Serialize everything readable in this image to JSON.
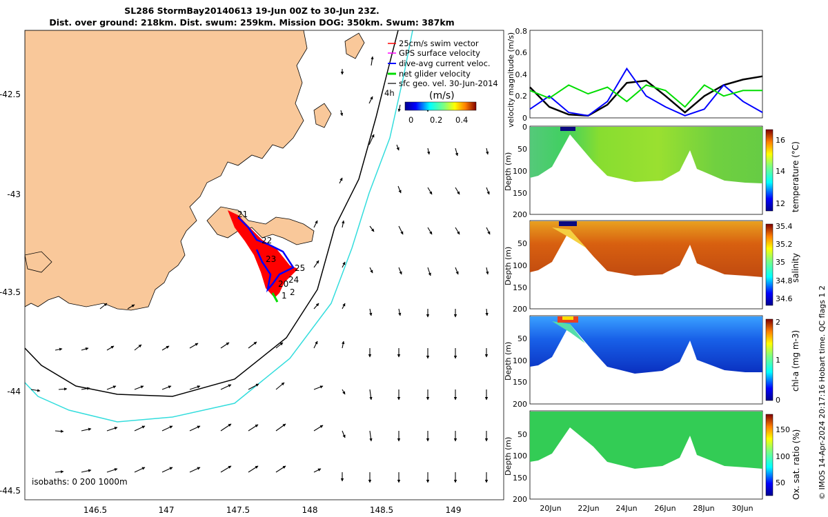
{
  "header": {
    "title_line1": "SL286 StormBay20140613 19-Jun 00Z to 30-Jun 23Z.",
    "title_line2": "Dist. over ground: 218km. Dist. swum: 259km. Mission DOG: 350km. Swum: 387km"
  },
  "map": {
    "lon_ticks": [
      "146.5",
      "147",
      "147.5",
      "148",
      "148.5",
      "149"
    ],
    "lat_ticks": [
      "-42.5",
      "-43",
      "-43.5",
      "-44",
      "-44.5"
    ],
    "legend": [
      {
        "label": "25cm/s swim vector",
        "color": "#ff0000"
      },
      {
        "label": "GPS surface velocity",
        "color": "#ff00ff"
      },
      {
        "label": "dive-avg current veloc.",
        "color": "#0000ff"
      },
      {
        "label": "net glider velocity",
        "color": "#00dd00"
      },
      {
        "label": "sfc geo. vel. 30-Jun-2014",
        "color": "#000000"
      }
    ],
    "legend_time_label": "4h",
    "colorbar": {
      "title": "(m/s)",
      "ticks": [
        "0",
        "0.2",
        "0.4"
      ]
    },
    "isobath_label": "isobaths: 0   200  1000m",
    "day_labels": [
      "21",
      "22",
      "23",
      "24",
      "20",
      "25",
      "1",
      "2"
    ],
    "colors": {
      "land": "#f9c89a",
      "isobath_200": "#000000",
      "isobath_1000": "#33dddd",
      "track": "#ff0000",
      "current": "#0000ff"
    }
  },
  "panels": {
    "velocity": {
      "ylabel": "velocity magnitude (m/s)",
      "yticks": [
        "0",
        "0.2",
        "0.4",
        "0.6",
        "0.8"
      ]
    },
    "sections": [
      {
        "name": "temperature",
        "cb_label": "temperature (°C)",
        "cb_ticks": [
          "12",
          "14",
          "16"
        ],
        "depth_ticks": [
          "0",
          "50",
          "100",
          "150",
          "200"
        ],
        "ylabel": "Depth (m)"
      },
      {
        "name": "salinity",
        "cb_label": "salinity",
        "cb_ticks": [
          "34.6",
          "34.8",
          "35",
          "35.2",
          "35.4"
        ],
        "depth_ticks": [
          "50",
          "100",
          "150",
          "200"
        ],
        "ylabel": "Depth (m)"
      },
      {
        "name": "chla",
        "cb_label": "chl-a (mg m-3)",
        "cb_ticks": [
          "0",
          "1",
          "2"
        ],
        "depth_ticks": [
          "50",
          "100",
          "150",
          "200"
        ],
        "ylabel": "Depth (m)"
      },
      {
        "name": "oxygen",
        "cb_label": "Ox. sat. ratio (%)",
        "cb_ticks": [
          "50",
          "100",
          "150"
        ],
        "depth_ticks": [
          "50",
          "100",
          "150",
          "200"
        ],
        "ylabel": "Depth (m)"
      }
    ],
    "date_ticks": [
      "20Jun",
      "22Jun",
      "24Jun",
      "26Jun",
      "28Jun",
      "30Jun"
    ]
  },
  "footer": {
    "stamp": "© IMOS 14-Apr-2024 20:17:16 Hobart time. QC flags 1  2"
  },
  "chart_data": [
    {
      "type": "line",
      "title": "",
      "xlabel": "",
      "ylabel": "velocity magnitude (m/s)",
      "ylim": [
        0,
        0.8
      ],
      "x": [
        "19-Jun",
        "20-Jun",
        "21-Jun",
        "22-Jun",
        "23-Jun",
        "24-Jun",
        "25-Jun",
        "26-Jun",
        "27-Jun",
        "28-Jun",
        "29-Jun",
        "30-Jun",
        "31-Jun"
      ],
      "series": [
        {
          "name": "sfc geo. vel. 30-Jun-2014",
          "color": "#000000",
          "values": [
            0.28,
            0.1,
            0.03,
            0.02,
            0.12,
            0.32,
            0.34,
            0.2,
            0.05,
            0.2,
            0.3,
            0.35,
            0.38
          ]
        },
        {
          "name": "dive-avg current veloc.",
          "color": "#0000ff",
          "values": [
            0.08,
            0.2,
            0.05,
            0.02,
            0.15,
            0.45,
            0.2,
            0.1,
            0.02,
            0.08,
            0.3,
            0.15,
            0.05
          ]
        },
        {
          "name": "net glider velocity",
          "color": "#00dd00",
          "values": [
            0.25,
            0.18,
            0.3,
            0.22,
            0.28,
            0.15,
            0.3,
            0.25,
            0.1,
            0.3,
            0.2,
            0.25,
            0.25
          ]
        }
      ]
    }
  ]
}
